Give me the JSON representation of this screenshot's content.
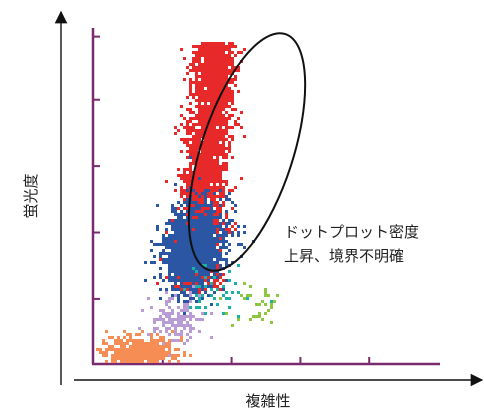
{
  "chart_data": {
    "type": "scatter",
    "title": "",
    "xlabel": "複雑性",
    "ylabel": "蛍光度",
    "xlim": [
      0,
      10
    ],
    "ylim": [
      0,
      10
    ],
    "grid": false,
    "annotation": [
      "ドットプロット密度",
      "上昇、境界不明確"
    ],
    "colors": {
      "frame": "#7a2a6e",
      "axis_arrow": "#111111",
      "ellipse": "#111111",
      "red": "#e8292a",
      "blue": "#2a56a4",
      "teal": "#1ab1a8",
      "green": "#8ec63f",
      "lavender": "#b99bd6",
      "orange": "#f58d55"
    },
    "series": [
      {
        "color_key": "red",
        "center": [
          3.2,
          5.9
        ],
        "spread": [
          0.9,
          3.4
        ],
        "count": 3500
      },
      {
        "color_key": "blue",
        "center": [
          2.9,
          3.5
        ],
        "spread": [
          1.0,
          1.5
        ],
        "count": 1400
      },
      {
        "color_key": "teal",
        "center": [
          3.4,
          2.1
        ],
        "spread": [
          1.1,
          0.9
        ],
        "count": 45
      },
      {
        "color_key": "green",
        "center": [
          4.6,
          1.8
        ],
        "spread": [
          1.0,
          0.8
        ],
        "count": 35
      },
      {
        "color_key": "lavender",
        "center": [
          2.3,
          1.3
        ],
        "spread": [
          0.9,
          0.8
        ],
        "count": 140
      },
      {
        "color_key": "orange",
        "center": [
          1.3,
          0.35
        ],
        "spread": [
          1.1,
          0.5
        ],
        "count": 550
      }
    ]
  }
}
